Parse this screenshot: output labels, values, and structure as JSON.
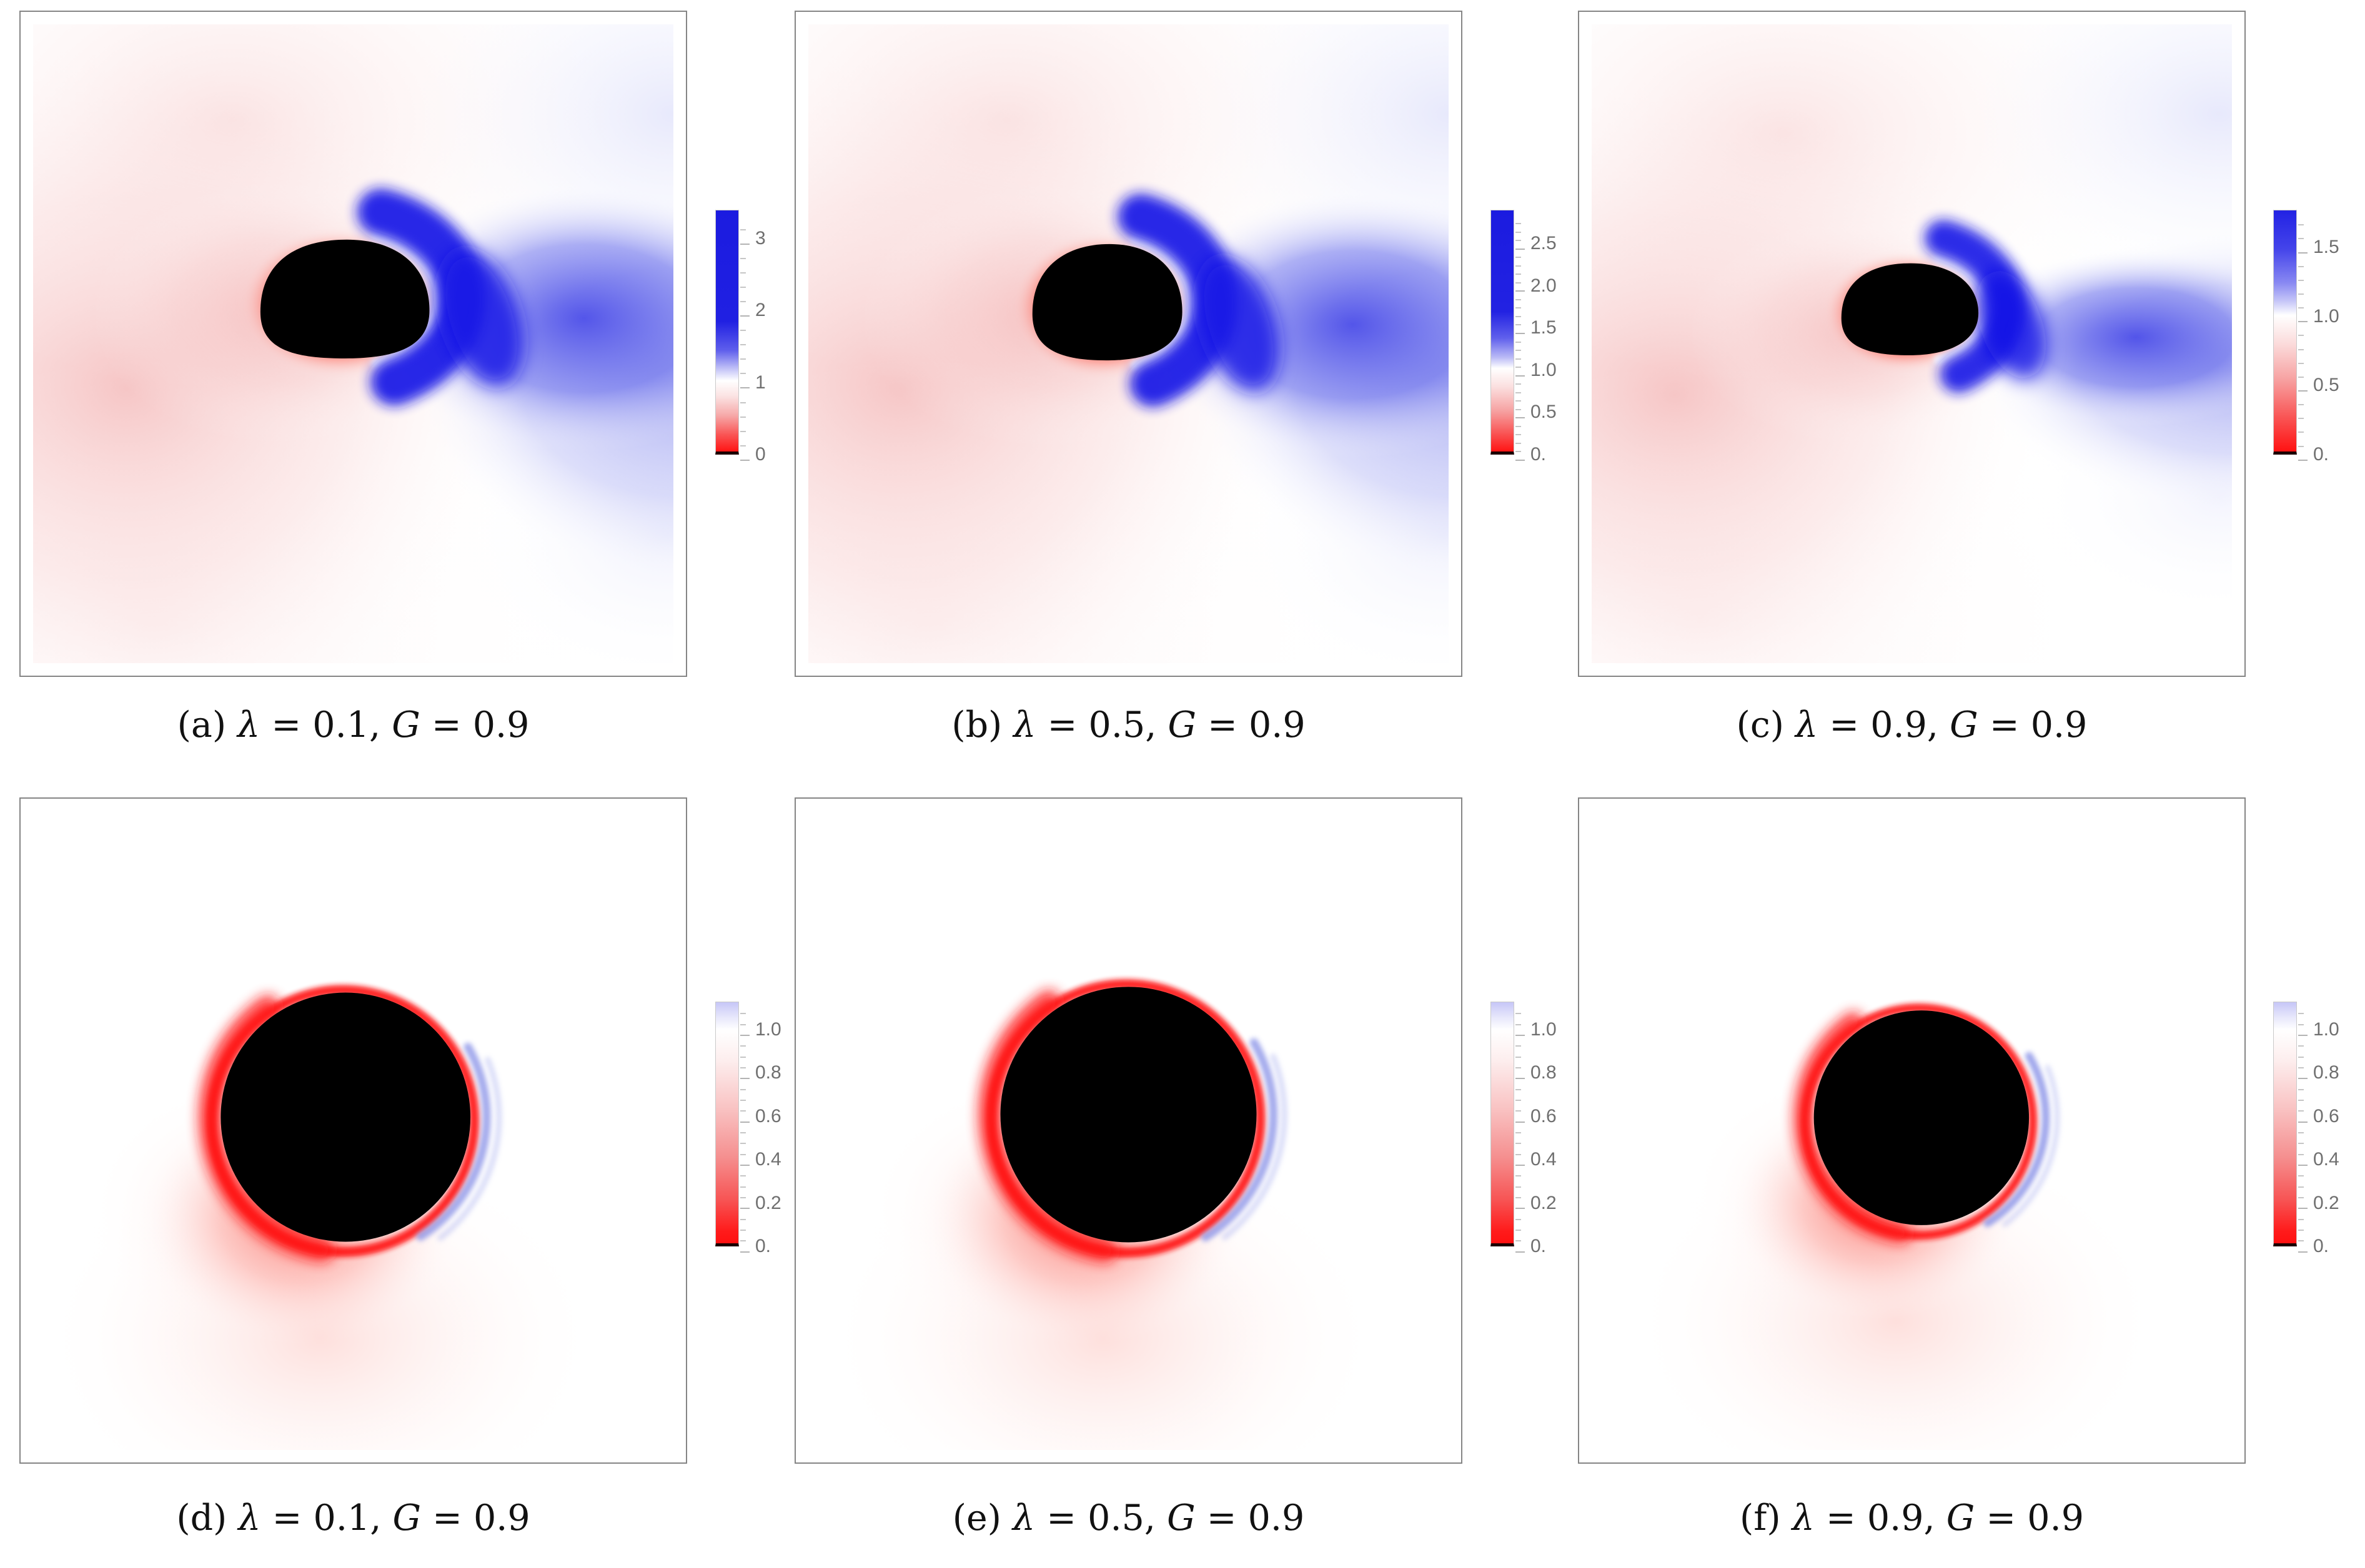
{
  "figure": {
    "background_color": "#ffffff",
    "frame_color": "#858585",
    "tick_label_color": "#6f6f6f",
    "colormap": {
      "blueshift": "#1b1be0",
      "neutral": "#ffffff",
      "redshift": "#ff1414",
      "shadow": "#000000"
    },
    "panels": [
      {
        "id": "a",
        "row": 0,
        "col": 0,
        "type": "redshift-density-map",
        "lambda": "0.1",
        "g": "0.9",
        "caption_text": "(a) λ = 0.1, 𝒢 = 0.9",
        "caption_segments": [
          {
            "t": "(a) ",
            "c": "rm"
          },
          {
            "t": "λ",
            "c": "it"
          },
          {
            "t": " = 0.1, ",
            "c": "rm"
          },
          {
            "t": "G",
            "c": "cal"
          },
          {
            "t": " = 0.9",
            "c": "rm"
          }
        ],
        "colorbar": {
          "min": 0,
          "max": 3.4,
          "minor_step": 0.2,
          "majors": [
            {
              "v": 3,
              "label": "3"
            },
            {
              "v": 2,
              "label": "2"
            },
            {
              "v": 1,
              "label": "1"
            },
            {
              "v": 0,
              "label": "0"
            }
          ]
        }
      },
      {
        "id": "b",
        "row": 0,
        "col": 1,
        "type": "redshift-density-map",
        "lambda": "0.5",
        "g": "0.9",
        "caption_text": "(b) λ = 0.5, 𝒢 = 0.9",
        "caption_segments": [
          {
            "t": "(b) ",
            "c": "rm"
          },
          {
            "t": "λ",
            "c": "it"
          },
          {
            "t": " = 0.5, ",
            "c": "rm"
          },
          {
            "t": "G",
            "c": "cal"
          },
          {
            "t": " = 0.9",
            "c": "rm"
          }
        ],
        "colorbar": {
          "min": 0,
          "max": 2.9,
          "minor_step": 0.1,
          "majors": [
            {
              "v": 2.5,
              "label": "2.5"
            },
            {
              "v": 2.0,
              "label": "2.0"
            },
            {
              "v": 1.5,
              "label": "1.5"
            },
            {
              "v": 1.0,
              "label": "1.0"
            },
            {
              "v": 0.5,
              "label": "0.5"
            },
            {
              "v": 0,
              "label": "0."
            }
          ]
        }
      },
      {
        "id": "c",
        "row": 0,
        "col": 2,
        "type": "redshift-density-map",
        "lambda": "0.9",
        "g": "0.9",
        "caption_text": "(c) λ = 0.9, 𝒢 = 0.9",
        "caption_segments": [
          {
            "t": "(c) ",
            "c": "rm"
          },
          {
            "t": "λ",
            "c": "it"
          },
          {
            "t": " = 0.9, ",
            "c": "rm"
          },
          {
            "t": "G",
            "c": "cal"
          },
          {
            "t": " = 0.9",
            "c": "rm"
          }
        ],
        "colorbar": {
          "min": 0,
          "max": 1.77,
          "minor_step": 0.1,
          "majors": [
            {
              "v": 1.5,
              "label": "1.5"
            },
            {
              "v": 1.0,
              "label": "1.0"
            },
            {
              "v": 0.5,
              "label": "0.5"
            },
            {
              "v": 0,
              "label": "0."
            }
          ]
        }
      },
      {
        "id": "d",
        "row": 1,
        "col": 0,
        "type": "shadow-intensity-map",
        "lambda": "0.1",
        "g": "0.9",
        "caption_text": "(d) λ = 0.1, 𝒢 = 0.9",
        "caption_segments": [
          {
            "t": "(d) ",
            "c": "rm"
          },
          {
            "t": "λ",
            "c": "it"
          },
          {
            "t": " = 0.1, ",
            "c": "rm"
          },
          {
            "t": "G",
            "c": "cal"
          },
          {
            "t": " = 0.9",
            "c": "rm"
          }
        ],
        "colorbar": {
          "min": 0,
          "max": 1.13,
          "minor_step": 0.05,
          "majors": [
            {
              "v": 1.0,
              "label": "1.0"
            },
            {
              "v": 0.8,
              "label": "0.8"
            },
            {
              "v": 0.6,
              "label": "0.6"
            },
            {
              "v": 0.4,
              "label": "0.4"
            },
            {
              "v": 0.2,
              "label": "0.2"
            },
            {
              "v": 0,
              "label": "0."
            }
          ]
        }
      },
      {
        "id": "e",
        "row": 1,
        "col": 1,
        "type": "shadow-intensity-map",
        "lambda": "0.5",
        "g": "0.9",
        "caption_text": "(e) λ = 0.5, 𝒢 = 0.9",
        "caption_segments": [
          {
            "t": "(e) ",
            "c": "rm"
          },
          {
            "t": "λ",
            "c": "it"
          },
          {
            "t": " = 0.5, ",
            "c": "rm"
          },
          {
            "t": "G",
            "c": "cal"
          },
          {
            "t": " = 0.9",
            "c": "rm"
          }
        ],
        "colorbar": {
          "min": 0,
          "max": 1.13,
          "minor_step": 0.05,
          "majors": [
            {
              "v": 1.0,
              "label": "1.0"
            },
            {
              "v": 0.8,
              "label": "0.8"
            },
            {
              "v": 0.6,
              "label": "0.6"
            },
            {
              "v": 0.4,
              "label": "0.4"
            },
            {
              "v": 0.2,
              "label": "0.2"
            },
            {
              "v": 0,
              "label": "0."
            }
          ]
        }
      },
      {
        "id": "f",
        "row": 1,
        "col": 2,
        "type": "shadow-intensity-map",
        "lambda": "0.9",
        "g": "0.9",
        "caption_text": "(f) λ = 0.9, 𝒢 = 0.9",
        "caption_segments": [
          {
            "t": "(f) ",
            "c": "rm"
          },
          {
            "t": "λ",
            "c": "it"
          },
          {
            "t": " = 0.9, ",
            "c": "rm"
          },
          {
            "t": "G",
            "c": "cal"
          },
          {
            "t": " = 0.9",
            "c": "rm"
          }
        ],
        "colorbar": {
          "min": 0,
          "max": 1.13,
          "minor_step": 0.05,
          "majors": [
            {
              "v": 1.0,
              "label": "1.0"
            },
            {
              "v": 0.8,
              "label": "0.8"
            },
            {
              "v": 0.6,
              "label": "0.6"
            },
            {
              "v": 0.4,
              "label": "0.4"
            },
            {
              "v": 0.2,
              "label": "0.2"
            },
            {
              "v": 0,
              "label": "0."
            }
          ]
        }
      }
    ]
  }
}
